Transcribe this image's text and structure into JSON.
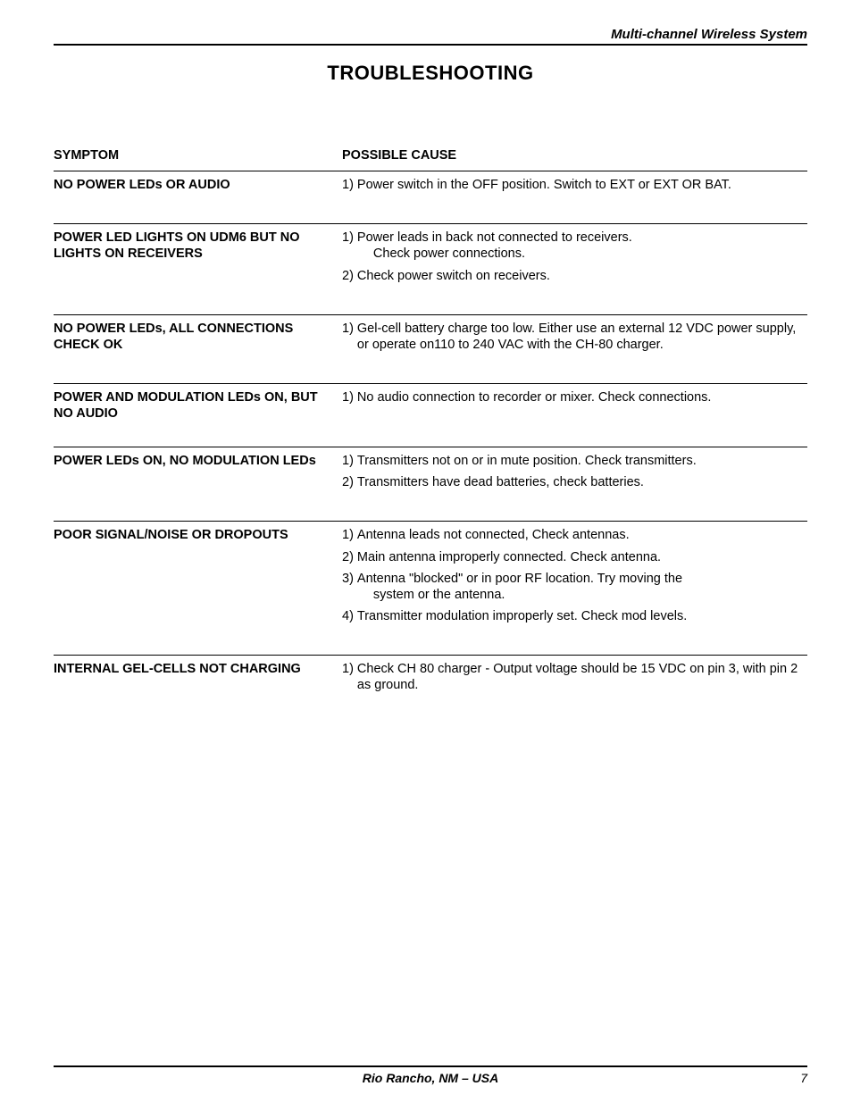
{
  "header": {
    "productLine": "Multi-channel Wireless System"
  },
  "title": "TROUBLESHOOTING",
  "columns": {
    "symptom": "SYMPTOM",
    "cause": "POSSIBLE CAUSE"
  },
  "rows": [
    {
      "symptom": "NO POWER LEDs OR AUDIO",
      "causes": [
        {
          "n": "1)",
          "text": "Power switch in the OFF position.  Switch to EXT or EXT OR BAT."
        }
      ]
    },
    {
      "symptom": "POWER LED LIGHTS ON UDM6 BUT NO LIGHTS ON RECEIVERS",
      "causes": [
        {
          "n": "1)",
          "text": "Power leads in back not connected to receivers.",
          "sub": "Check power connections."
        },
        {
          "n": "2)",
          "text": "Check power switch on receivers."
        }
      ]
    },
    {
      "symptom": "NO POWER LEDs, ALL CONNECTIONS CHECK OK",
      "causes": [
        {
          "n": "1)",
          "text": "Gel-cell battery charge too low.  Either use an external 12 VDC power supply, or operate on110 to 240 VAC with the CH-80 charger."
        }
      ]
    },
    {
      "symptom": "POWER AND MODULATION LEDs ON, BUT NO AUDIO",
      "causes": [
        {
          "n": "1)",
          "text": "No audio connection to recorder or mixer.  Check connections."
        }
      ]
    },
    {
      "symptom": "POWER LEDs ON, NO MODULATION LEDs",
      "causes": [
        {
          "n": "1)",
          "text": "Transmitters not on or in mute position.  Check transmitters."
        },
        {
          "n": "2)",
          "text": "Transmitters have dead batteries, check batteries."
        }
      ]
    },
    {
      "symptom": "POOR SIGNAL/NOISE OR DROPOUTS",
      "causes": [
        {
          "n": "1)",
          "text": "Antenna leads not connected, Check antennas."
        },
        {
          "n": "2)",
          "text": "Main antenna improperly connected.  Check antenna."
        },
        {
          "n": "3)",
          "text": "Antenna \"blocked\" or in poor RF location.  Try moving the",
          "sub": "system or the antenna."
        },
        {
          "n": "4)",
          "text": "Transmitter modulation improperly set.  Check mod levels."
        }
      ]
    },
    {
      "symptom": "INTERNAL GEL-CELLS NOT CHARGING",
      "causes": [
        {
          "n": "1)",
          "text": "Check CH 80 charger - Output voltage should be 15 VDC on pin 3, with pin 2 as ground."
        }
      ]
    }
  ],
  "footer": {
    "location": "Rio Rancho, NM – USA",
    "pageNumber": "7"
  },
  "style": {
    "fontFamily": "Arial, Helvetica, sans-serif",
    "textColor": "#000000",
    "backgroundColor": "#ffffff",
    "ruleColor": "#000000",
    "titleFontSize": 22,
    "bodyFontSize": 14.5,
    "headerItalic": true,
    "symptomColWidthPx": 315,
    "pageWidthPx": 954,
    "pageHeightPx": 1235
  }
}
